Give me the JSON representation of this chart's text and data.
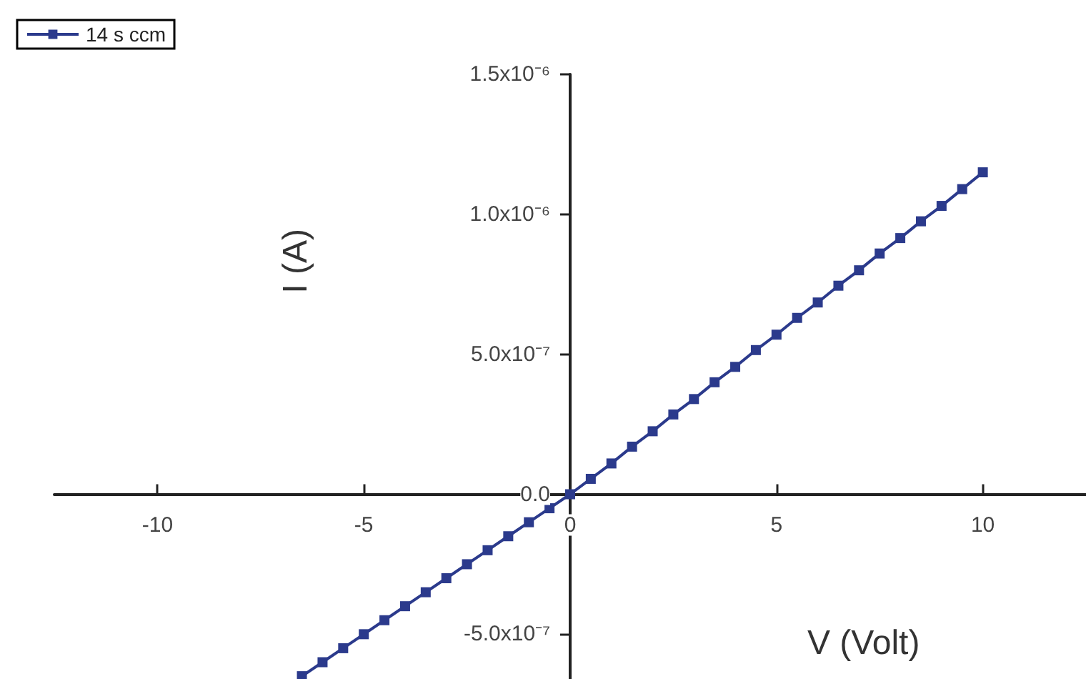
{
  "chart_data": {
    "type": "line",
    "xlabel": "V (Volt)",
    "ylabel": "I (A)",
    "x": [
      -6.5,
      -6,
      -5.5,
      -5,
      -4.5,
      -4,
      -3.5,
      -3,
      -2.5,
      -2,
      -1.5,
      -1,
      -0.5,
      0,
      0.5,
      1,
      1.5,
      2,
      2.5,
      3,
      3.5,
      4,
      4.5,
      5,
      5.5,
      6,
      6.5,
      7,
      7.5,
      8,
      8.5,
      9,
      9.5,
      10
    ],
    "series": [
      {
        "name": "14 s ccm",
        "color": "#2b3a8c",
        "values": [
          -6.5e-07,
          -6e-07,
          -5.5e-07,
          -5e-07,
          -4.5e-07,
          -4e-07,
          -3.5e-07,
          -3e-07,
          -2.5e-07,
          -2e-07,
          -1.5e-07,
          -1e-07,
          -5e-08,
          0,
          5.5e-08,
          1.1e-07,
          1.7e-07,
          2.25e-07,
          2.85e-07,
          3.4e-07,
          4e-07,
          4.55e-07,
          5.15e-07,
          5.7e-07,
          6.3e-07,
          6.85e-07,
          7.45e-07,
          8e-07,
          8.6e-07,
          9.15e-07,
          9.75e-07,
          1.03e-06,
          1.09e-06,
          1.15e-06
        ]
      }
    ],
    "xlim": [
      -12.5,
      12.5
    ],
    "xticks": [
      -10,
      -5,
      0,
      5,
      10
    ],
    "ylim": [
      -6.6e-07,
      1.5e-06
    ],
    "yticks": [
      {
        "value": -5e-07,
        "label": "-5.0x10⁻⁷"
      },
      {
        "value": 0,
        "label": "0.0"
      },
      {
        "value": 5e-07,
        "label": "5.0x10⁻⁷"
      },
      {
        "value": 1e-06,
        "label": "1.0x10⁻⁶"
      },
      {
        "value": 1.5e-06,
        "label": "1.5x10⁻⁶"
      }
    ],
    "marker": "square",
    "legend": "top left"
  }
}
